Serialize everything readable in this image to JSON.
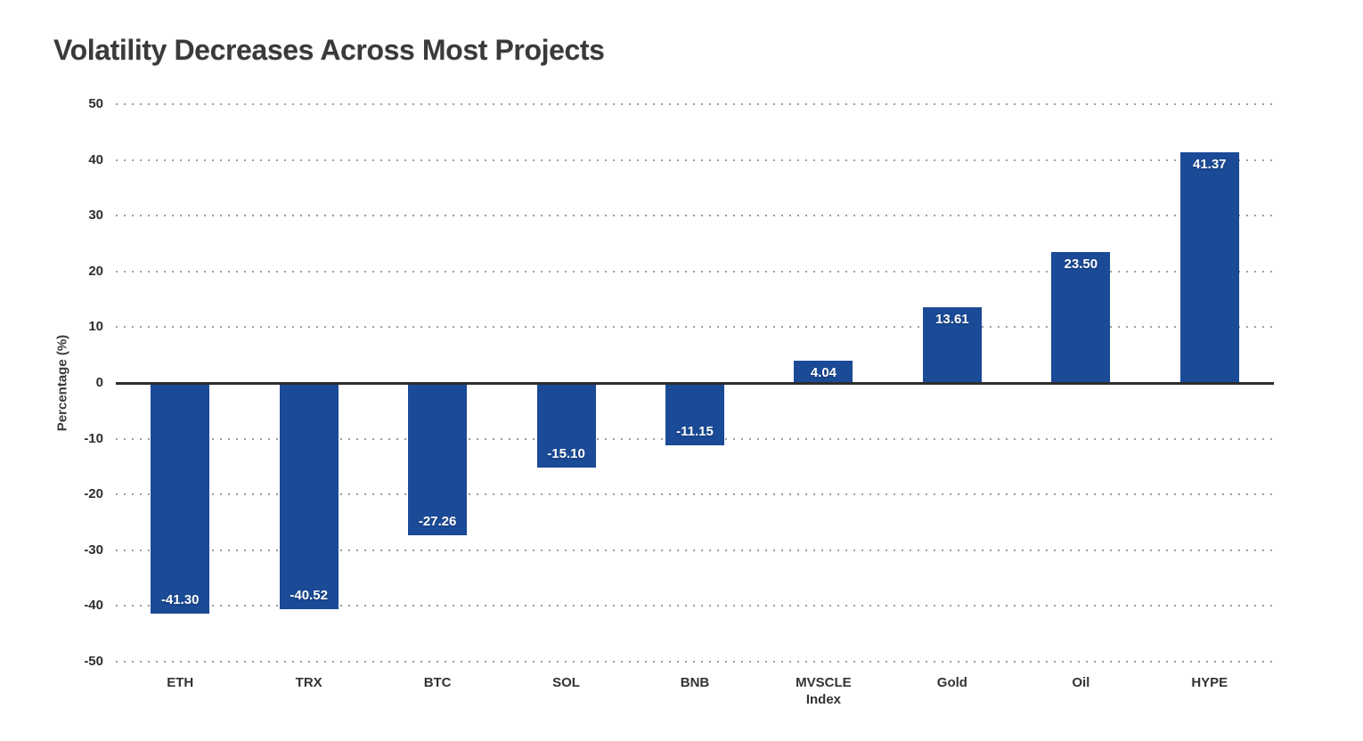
{
  "chart_data": {
    "type": "bar",
    "title": "Volatility Decreases Across Most Projects",
    "xlabel": "",
    "ylabel": "Percentage (%)",
    "categories": [
      "ETH",
      "TRX",
      "BTC",
      "SOL",
      "BNB",
      "MVSCLE Index",
      "Gold",
      "Oil",
      "HYPE"
    ],
    "values": [
      -41.3,
      -40.52,
      -27.26,
      -15.1,
      -11.15,
      4.04,
      13.61,
      23.5,
      41.37
    ],
    "value_labels": [
      "-41.30",
      "-40.52",
      "-27.26",
      "-15.10",
      "-11.15",
      "4.04",
      "13.61",
      "23.50",
      "41.37"
    ],
    "ylim": [
      -50,
      50
    ],
    "yticks": [
      50,
      40,
      30,
      20,
      10,
      0,
      -10,
      -20,
      -30,
      -40,
      -50
    ],
    "grid": "horizontal dotted, zero line solid",
    "legend": "none",
    "bar_color": "#1B4A96",
    "value_label_color": "#FFFFFF",
    "zero_line_color": "#2D2D2D",
    "gridline_color": "#9D9D9D",
    "title_color": "#3A3A3A"
  }
}
